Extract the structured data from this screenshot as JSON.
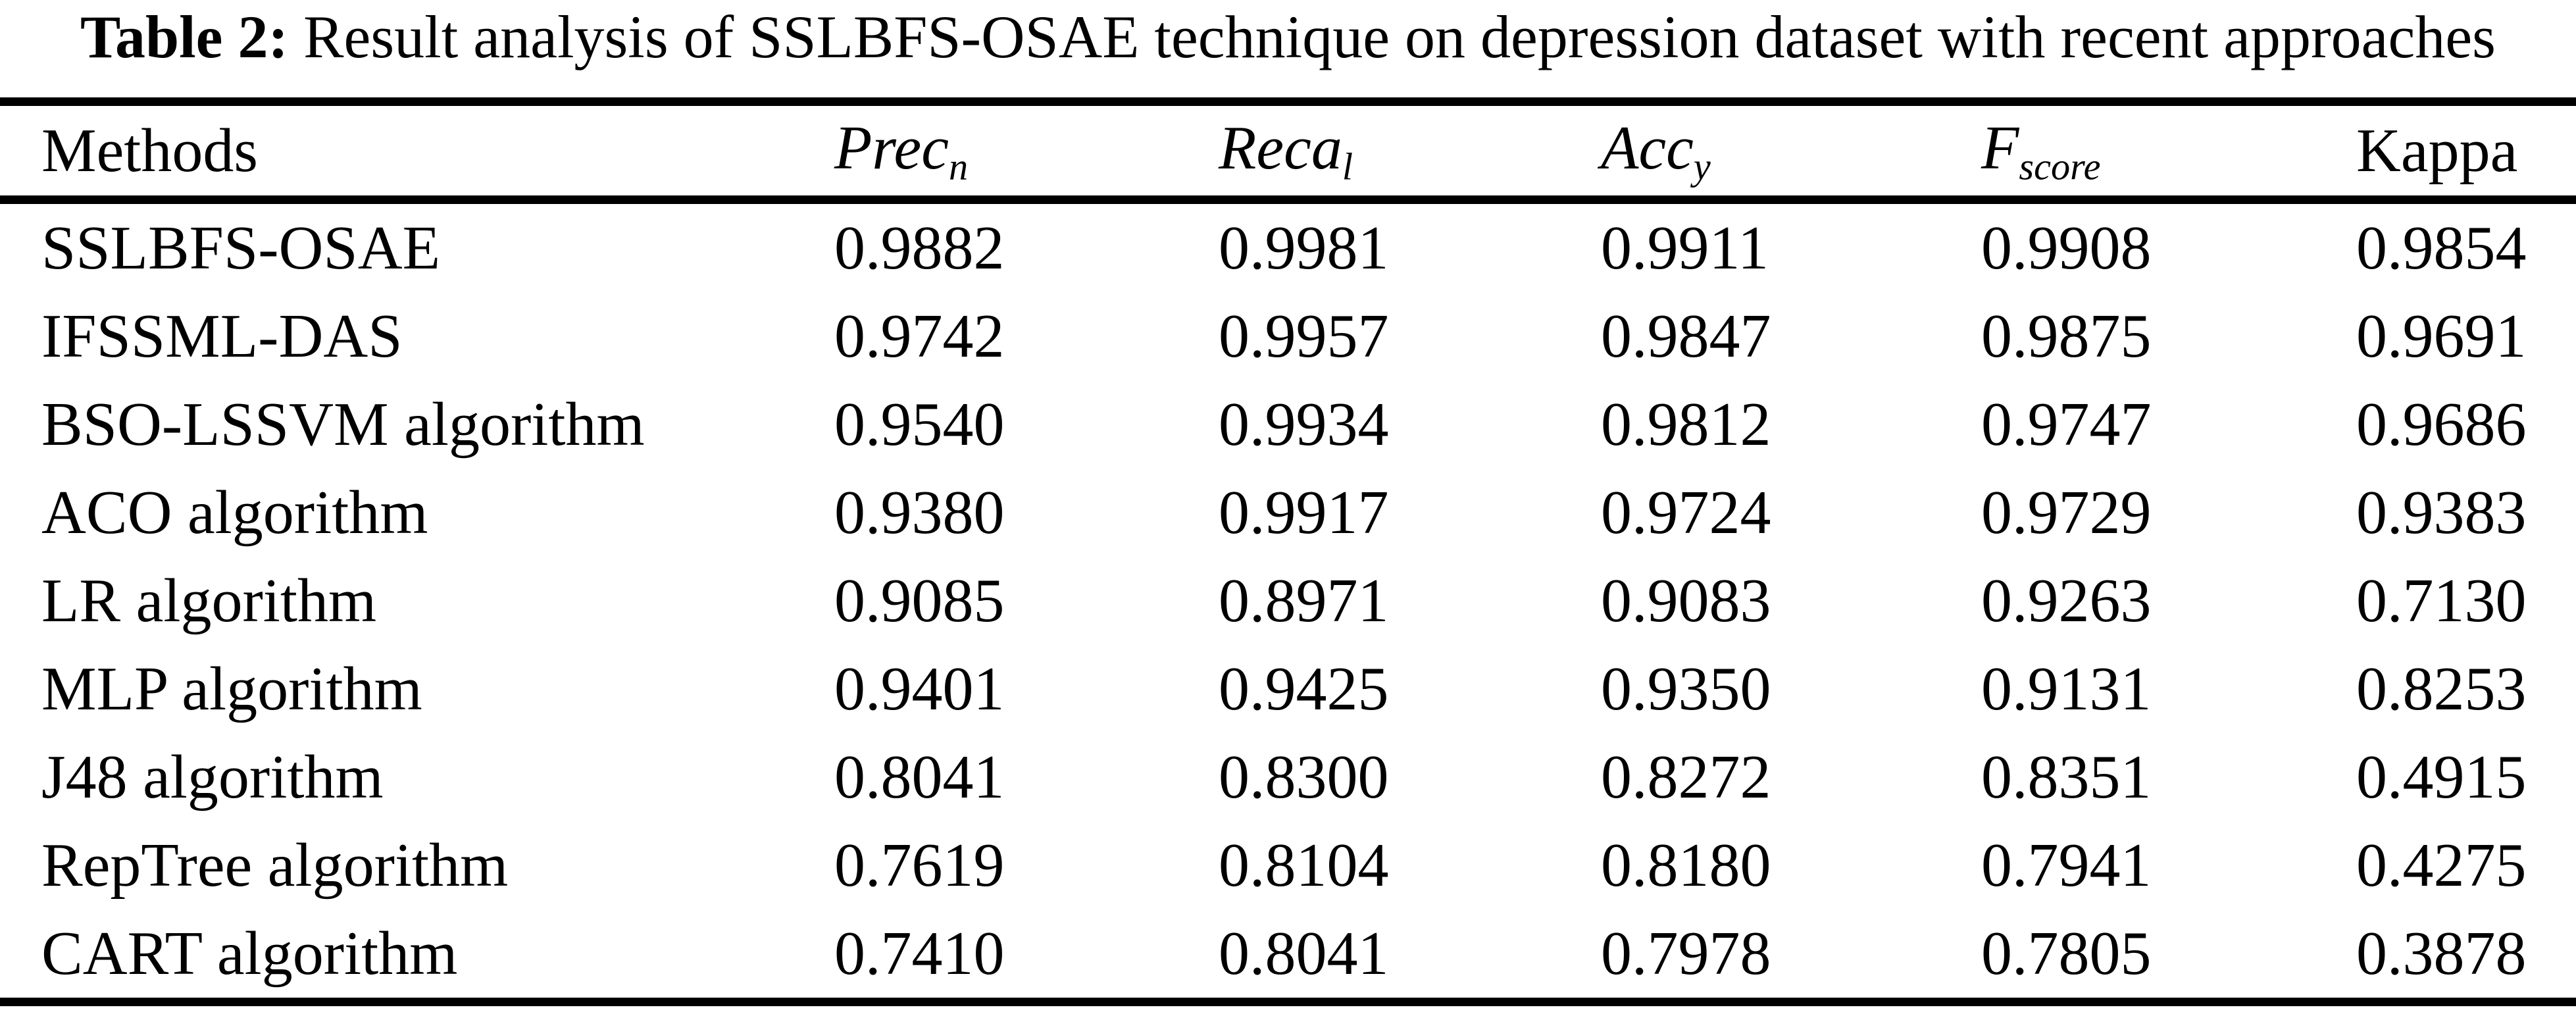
{
  "caption": {
    "prefix": "Table 2:",
    "text": " Result analysis of SSLBFS-OSAE technique on depression dataset with recent approaches"
  },
  "table": {
    "columns": [
      {
        "label": "Methods",
        "sub": "",
        "italic": false
      },
      {
        "label": "Prec",
        "sub": "n",
        "italic": true
      },
      {
        "label": "Reca",
        "sub": "l",
        "italic": true
      },
      {
        "label": "Acc",
        "sub": "y",
        "italic": true
      },
      {
        "label": "F",
        "sub": "score",
        "italic": true
      },
      {
        "label": "Kappa",
        "sub": "",
        "italic": false
      }
    ],
    "rows": [
      {
        "method": "SSLBFS-OSAE",
        "values": [
          "0.9882",
          "0.9981",
          "0.9911",
          "0.9908",
          "0.9854"
        ]
      },
      {
        "method": "IFSSML-DAS",
        "values": [
          "0.9742",
          "0.9957",
          "0.9847",
          "0.9875",
          "0.9691"
        ]
      },
      {
        "method": "BSO-LSSVM algorithm",
        "values": [
          "0.9540",
          "0.9934",
          "0.9812",
          "0.9747",
          "0.9686"
        ]
      },
      {
        "method": "ACO algorithm",
        "values": [
          "0.9380",
          "0.9917",
          "0.9724",
          "0.9729",
          "0.9383"
        ]
      },
      {
        "method": "LR algorithm",
        "values": [
          "0.9085",
          "0.8971",
          "0.9083",
          "0.9263",
          "0.7130"
        ]
      },
      {
        "method": "MLP algorithm",
        "values": [
          "0.9401",
          "0.9425",
          "0.9350",
          "0.9131",
          "0.8253"
        ]
      },
      {
        "method": "J48 algorithm",
        "values": [
          "0.8041",
          "0.8300",
          "0.8272",
          "0.8351",
          "0.4915"
        ]
      },
      {
        "method": "RepTree algorithm",
        "values": [
          "0.7619",
          "0.8104",
          "0.8180",
          "0.7941",
          "0.4275"
        ]
      },
      {
        "method": "CART algorithm",
        "values": [
          "0.7410",
          "0.8041",
          "0.7978",
          "0.7805",
          "0.3878"
        ]
      }
    ]
  },
  "colors": {
    "background": "#ffffff",
    "text": "#000000",
    "rule": "#000000"
  },
  "chart_data": {
    "type": "table",
    "title": "Table 2: Result analysis of SSLBFS-OSAE technique on depression dataset with recent approaches",
    "columns": [
      "Methods",
      "Prec_n",
      "Reca_l",
      "Acc_y",
      "F_score",
      "Kappa"
    ],
    "rows": [
      [
        "SSLBFS-OSAE",
        0.9882,
        0.9981,
        0.9911,
        0.9908,
        0.9854
      ],
      [
        "IFSSML-DAS",
        0.9742,
        0.9957,
        0.9847,
        0.9875,
        0.9691
      ],
      [
        "BSO-LSSVM algorithm",
        0.954,
        0.9934,
        0.9812,
        0.9747,
        0.9686
      ],
      [
        "ACO algorithm",
        0.938,
        0.9917,
        0.9724,
        0.9729,
        0.9383
      ],
      [
        "LR algorithm",
        0.9085,
        0.8971,
        0.9083,
        0.9263,
        0.713
      ],
      [
        "MLP algorithm",
        0.9401,
        0.9425,
        0.935,
        0.9131,
        0.8253
      ],
      [
        "J48 algorithm",
        0.8041,
        0.83,
        0.8272,
        0.8351,
        0.4915
      ],
      [
        "RepTree algorithm",
        0.7619,
        0.8104,
        0.818,
        0.7941,
        0.4275
      ],
      [
        "CART algorithm",
        0.741,
        0.8041,
        0.7978,
        0.7805,
        0.3878
      ]
    ]
  }
}
